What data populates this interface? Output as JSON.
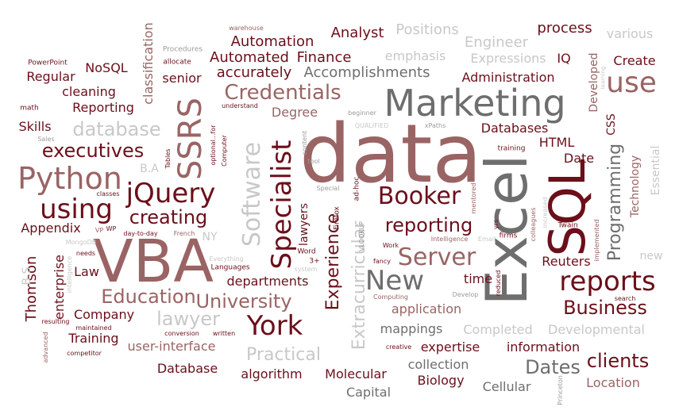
{
  "palette": {
    "maroon": "#6b0f1a",
    "dark_red": "#7a1020",
    "rose": "#9a6464",
    "gray": "#6e6e6e",
    "mid_gray": "#9b9b9b",
    "light_gray": "#c8c8c8"
  },
  "words": [
    {
      "text": "data",
      "c": "#9a6464"
    },
    {
      "text": "Excel",
      "c": "#6e6e6e"
    },
    {
      "text": "VBA",
      "c": "#9a6464"
    },
    {
      "text": "SQL",
      "c": "#6b0f1a"
    },
    {
      "text": "Marketing",
      "c": "#6e6e6e"
    },
    {
      "text": "Python",
      "c": "#9a6464"
    },
    {
      "text": "jQuery",
      "c": "#6b0f1a"
    },
    {
      "text": "SSRS",
      "c": "#9a6464"
    },
    {
      "text": "Specialist",
      "c": "#6b0f1a"
    },
    {
      "text": "Software",
      "c": "#c8c8c8"
    },
    {
      "text": "reports",
      "c": "#6b0f1a"
    },
    {
      "text": "New",
      "c": "#6e6e6e"
    },
    {
      "text": "York",
      "c": "#6b0f1a"
    },
    {
      "text": "Booker",
      "c": "#6b0f1a"
    },
    {
      "text": "Server",
      "c": "#9a6464"
    },
    {
      "text": "use",
      "c": "#9a6464"
    },
    {
      "text": "using",
      "c": "#6b0f1a"
    },
    {
      "text": "Credentials",
      "c": "#9a6464"
    },
    {
      "text": "Programming",
      "c": "#6e6e6e"
    },
    {
      "text": "reporting",
      "c": "#6b0f1a"
    },
    {
      "text": "creating",
      "c": "#6b0f1a"
    },
    {
      "text": "executives",
      "c": "#6b0f1a"
    },
    {
      "text": "database",
      "c": "#c8c8c8"
    },
    {
      "text": "Education",
      "c": "#9a6464"
    },
    {
      "text": "University",
      "c": "#9a6464"
    },
    {
      "text": "Business",
      "c": "#6b0f1a"
    },
    {
      "text": "clients",
      "c": "#6b0f1a"
    },
    {
      "text": "Dates",
      "c": "#6e6e6e"
    },
    {
      "text": "Practical",
      "c": "#c8c8c8"
    },
    {
      "text": "lawyer",
      "c": "#c8c8c8"
    },
    {
      "text": "Extracurricular",
      "c": "#c8c8c8"
    },
    {
      "text": "Experience",
      "c": "#6b0f1a"
    },
    {
      "text": "Accomplishments",
      "c": "#6e6e6e"
    },
    {
      "text": "Automation",
      "c": "#6b0f1a"
    },
    {
      "text": "Automated",
      "c": "#6b0f1a"
    },
    {
      "text": "Finance",
      "c": "#6b0f1a"
    },
    {
      "text": "Analyst",
      "c": "#6b0f1a"
    },
    {
      "text": "Positions",
      "c": "#c8c8c8"
    },
    {
      "text": "process",
      "c": "#6b0f1a"
    },
    {
      "text": "various",
      "c": "#c8c8c8"
    },
    {
      "text": "Engineer",
      "c": "#c8c8c8"
    },
    {
      "text": "emphasis",
      "c": "#c8c8c8"
    },
    {
      "text": "Expressions",
      "c": "#c8c8c8"
    },
    {
      "text": "IQ",
      "c": "#6b0f1a"
    },
    {
      "text": "Create",
      "c": "#6b0f1a"
    },
    {
      "text": "Administration",
      "c": "#6b0f1a"
    },
    {
      "text": "accurately",
      "c": "#6b0f1a"
    },
    {
      "text": "senior",
      "c": "#6b0f1a"
    },
    {
      "text": "NoSQL",
      "c": "#6b0f1a"
    },
    {
      "text": "Regular",
      "c": "#6b0f1a"
    },
    {
      "text": "cleaning",
      "c": "#6b0f1a"
    },
    {
      "text": "Reporting",
      "c": "#6b0f1a"
    },
    {
      "text": "Skills",
      "c": "#6b0f1a"
    },
    {
      "text": "classification",
      "c": "#9a6464"
    },
    {
      "text": "Developed",
      "c": "#9a6464"
    },
    {
      "text": "Databases",
      "c": "#6b0f1a"
    },
    {
      "text": "Degree",
      "c": "#9a6464"
    },
    {
      "text": "HTML",
      "c": "#6b0f1a"
    },
    {
      "text": "Date",
      "c": "#6b0f1a"
    },
    {
      "text": "CSS",
      "c": "#6b0f1a"
    },
    {
      "text": "Technology",
      "c": "#9a6464"
    },
    {
      "text": "Essential",
      "c": "#c8c8c8"
    },
    {
      "text": "Thomson",
      "c": "#6b0f1a"
    },
    {
      "text": "Reuters",
      "c": "#6b0f1a"
    },
    {
      "text": "new",
      "c": "#c8c8c8"
    },
    {
      "text": "Appendix",
      "c": "#6b0f1a"
    },
    {
      "text": "Law",
      "c": "#6b0f1a"
    },
    {
      "text": "enterprise",
      "c": "#6b0f1a"
    },
    {
      "text": "Company",
      "c": "#6b0f1a"
    },
    {
      "text": "Training",
      "c": "#6b0f1a"
    },
    {
      "text": "user-interface",
      "c": "#9a6464"
    },
    {
      "text": "departments",
      "c": "#6b0f1a"
    },
    {
      "text": "application",
      "c": "#9a6464"
    },
    {
      "text": "time",
      "c": "#6b0f1a"
    },
    {
      "text": "mappings",
      "c": "#6e6e6e"
    },
    {
      "text": "Completed",
      "c": "#c8c8c8"
    },
    {
      "text": "Developmental",
      "c": "#c8c8c8"
    },
    {
      "text": "expertise",
      "c": "#6b0f1a"
    },
    {
      "text": "information",
      "c": "#6b0f1a"
    },
    {
      "text": "Database",
      "c": "#6b0f1a"
    },
    {
      "text": "algorithm",
      "c": "#6b0f1a"
    },
    {
      "text": "Molecular",
      "c": "#6b0f1a"
    },
    {
      "text": "Biology",
      "c": "#6b0f1a"
    },
    {
      "text": "collection",
      "c": "#6e6e6e"
    },
    {
      "text": "Cellular",
      "c": "#6e6e6e"
    },
    {
      "text": "Capital",
      "c": "#6e6e6e"
    },
    {
      "text": "Location",
      "c": "#9a6464"
    },
    {
      "text": "lawyers",
      "c": "#6b0f1a"
    },
    {
      "text": "B.S",
      "c": "#c8c8c8"
    },
    {
      "text": "B.A",
      "c": "#c8c8c8"
    },
    {
      "text": "NY",
      "c": "#c8c8c8"
    },
    {
      "text": "PowerPoint",
      "c": "#6b0f1a"
    },
    {
      "text": "math",
      "c": "#6b0f1a"
    },
    {
      "text": "Sales",
      "c": "#9b9b9b"
    },
    {
      "text": "allocate",
      "c": "#6b0f1a"
    },
    {
      "text": "Procedures",
      "c": "#9b9b9b"
    },
    {
      "text": "warehouse",
      "c": "#9a6464"
    },
    {
      "text": "understand",
      "c": "#6b0f1a"
    },
    {
      "text": "optional...for",
      "c": "#6b0f1a"
    },
    {
      "text": "Computer",
      "c": "#6b0f1a"
    },
    {
      "text": "Tables",
      "c": "#6b0f1a"
    },
    {
      "text": "tool",
      "c": "#9b9b9b"
    },
    {
      "text": "content",
      "c": "#9b9b9b"
    },
    {
      "text": "ad-hoc",
      "c": "#6b0f1a"
    },
    {
      "text": "beginner",
      "c": "#9b9b9b"
    },
    {
      "text": "QUALIFIED",
      "c": "#c8c8c8"
    },
    {
      "text": "xPaths",
      "c": "#9b9b9b"
    },
    {
      "text": "training",
      "c": "#6b0f1a"
    },
    {
      "text": "mentored",
      "c": "#9a6464"
    },
    {
      "text": "Special",
      "c": "#9b9b9b"
    },
    {
      "text": "Firefox",
      "c": "#6b0f1a"
    },
    {
      "text": "Word",
      "c": "#6b0f1a"
    },
    {
      "text": "3+",
      "c": "#6b0f1a"
    },
    {
      "text": "VLOOKUP",
      "c": "#9b9b9b"
    },
    {
      "text": "Work",
      "c": "#6b0f1a"
    },
    {
      "text": "fancy",
      "c": "#6b0f1a"
    },
    {
      "text": "Intelligence",
      "c": "#9a6464"
    },
    {
      "text": "Email",
      "c": "#c8c8c8"
    },
    {
      "text": "firms",
      "c": "#6b0f1a"
    },
    {
      "text": "yrs",
      "c": "#6b0f1a"
    },
    {
      "text": "colleagues",
      "c": "#9a6464"
    },
    {
      "text": "increased",
      "c": "#c8c8c8"
    },
    {
      "text": "Twain",
      "c": "#6b0f1a"
    },
    {
      "text": "implemented",
      "c": "#9a6464"
    },
    {
      "text": "search",
      "c": "#6b0f1a"
    },
    {
      "text": "learning",
      "c": "#c8c8c8"
    },
    {
      "text": "classes",
      "c": "#6b0f1a"
    },
    {
      "text": "VP",
      "c": "#9a6464"
    },
    {
      "text": "WP",
      "c": "#6b0f1a"
    },
    {
      "text": "day-to-day",
      "c": "#6b0f1a"
    },
    {
      "text": "French",
      "c": "#9a6464"
    },
    {
      "text": "MongoDB",
      "c": "#c8c8c8"
    },
    {
      "text": "needs",
      "c": "#6b0f1a"
    },
    {
      "text": "intelligence",
      "c": "#c8c8c8"
    },
    {
      "text": "Everything",
      "c": "#c8c8c8"
    },
    {
      "text": "Languages",
      "c": "#6b0f1a"
    },
    {
      "text": "system",
      "c": "#c8c8c8"
    },
    {
      "text": "resulting",
      "c": "#6b0f1a"
    },
    {
      "text": "maintained",
      "c": "#6b0f1a"
    },
    {
      "text": "advanced",
      "c": "#9a6464"
    },
    {
      "text": "competitor",
      "c": "#6b0f1a"
    },
    {
      "text": "conversion",
      "c": "#6b0f1a"
    },
    {
      "text": "written",
      "c": "#6b0f1a"
    },
    {
      "text": "Computing",
      "c": "#9a6464"
    },
    {
      "text": "Develop",
      "c": "#9b9b9b"
    },
    {
      "text": "reduced",
      "c": "#6b0f1a"
    },
    {
      "text": "creative",
      "c": "#6b0f1a"
    },
    {
      "text": "Princeton",
      "c": "#9b9b9b"
    }
  ]
}
